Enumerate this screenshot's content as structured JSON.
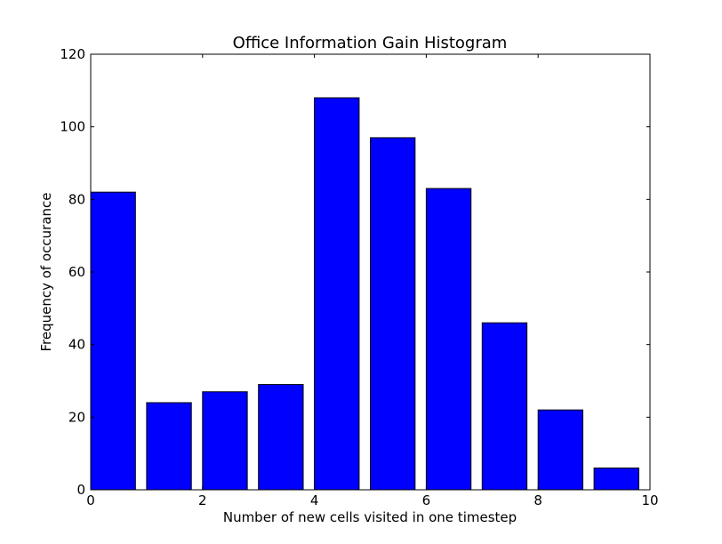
{
  "chart_data": {
    "type": "bar",
    "title": "Office Information Gain Histogram",
    "xlabel": "Number of new cells visited in one timestep",
    "ylabel": "Frequency of occurance",
    "bars": [
      {
        "x_start": 0.0,
        "x_end": 0.8,
        "value": 82
      },
      {
        "x_start": 1.0,
        "x_end": 1.8,
        "value": 24
      },
      {
        "x_start": 2.0,
        "x_end": 2.8,
        "value": 27
      },
      {
        "x_start": 3.0,
        "x_end": 3.8,
        "value": 29
      },
      {
        "x_start": 4.0,
        "x_end": 4.8,
        "value": 108
      },
      {
        "x_start": 5.0,
        "x_end": 5.8,
        "value": 97
      },
      {
        "x_start": 6.0,
        "x_end": 6.8,
        "value": 83
      },
      {
        "x_start": 7.0,
        "x_end": 7.8,
        "value": 46
      },
      {
        "x_start": 8.0,
        "x_end": 8.8,
        "value": 22
      },
      {
        "x_start": 9.0,
        "x_end": 9.8,
        "value": 6
      }
    ],
    "xlim": [
      0,
      10
    ],
    "ylim": [
      0,
      120
    ],
    "xticks": [
      0,
      2,
      4,
      6,
      8,
      10
    ],
    "yticks": [
      0,
      20,
      40,
      60,
      80,
      100,
      120
    ],
    "bar_color": "#0000ff",
    "edge_color": "#000000",
    "grid": false,
    "legend": "none"
  }
}
